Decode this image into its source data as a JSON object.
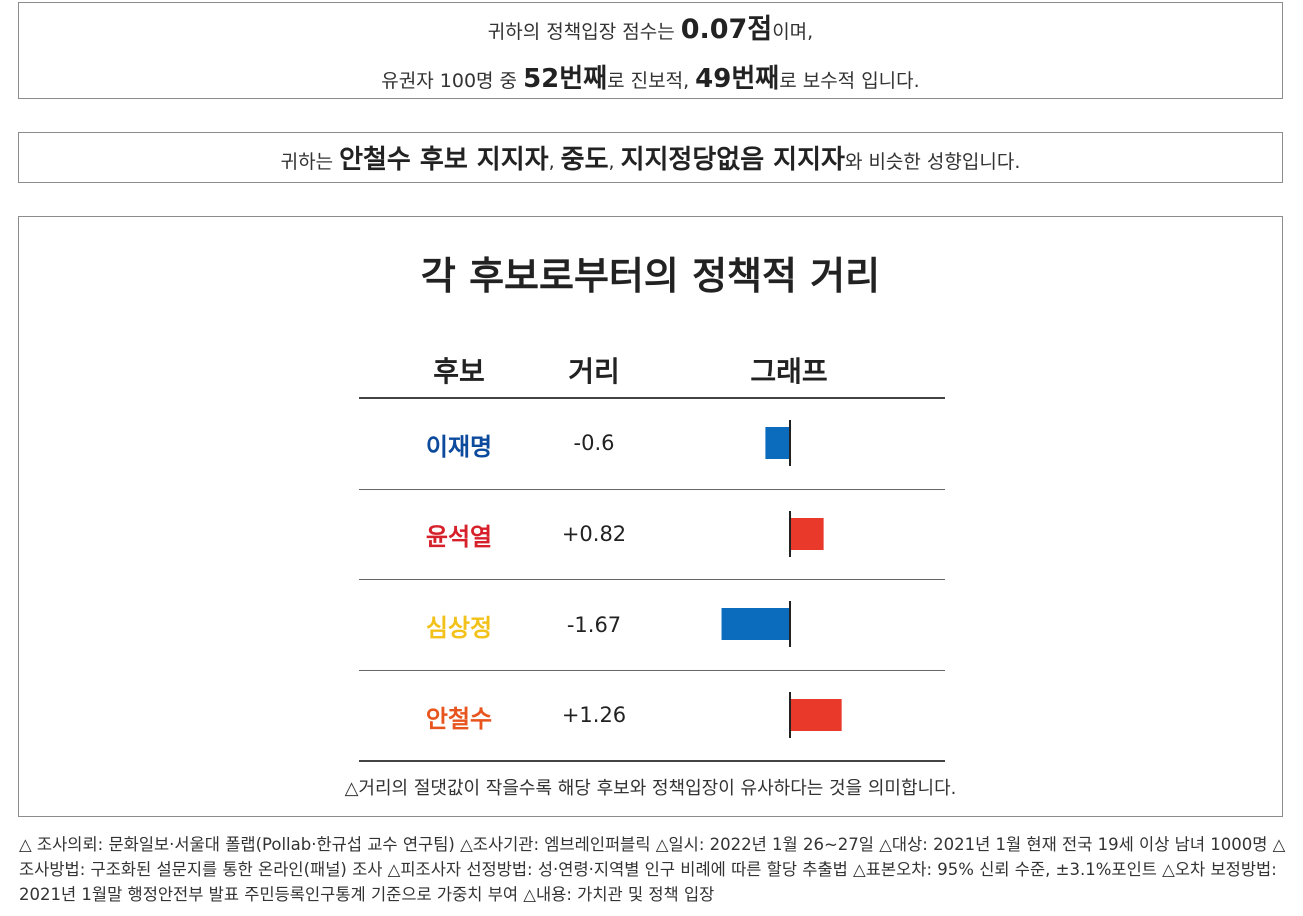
{
  "score": {
    "l1_a": "귀하의 정책입장 점수는 ",
    "score": "0.07점",
    "l1_b": "이며,",
    "l2_a": "유권자 100명 중 ",
    "progressive_rank": "52번째",
    "l2_b": "로 진보적, ",
    "conservative_rank": "49번째",
    "l2_c": "로 보수적 입니다."
  },
  "similar": {
    "prefix": "귀하는 ",
    "groups": "안철수 후보 지지자",
    "sep1": ", ",
    "group2": "중도",
    "sep2": ", ",
    "group3": "지지정당없음 지지자",
    "suffix": "와 비슷한 성향입니다."
  },
  "chart": {
    "title": "각 후보로부터의 정책적 거리",
    "headers": {
      "candidate": "후보",
      "distance": "거리",
      "graph": "그래프"
    },
    "note": "△거리의 절댓값이 작을수록 해당 후보와 정책입장이 유사하다는 것을 의미합니다."
  },
  "chart_data": {
    "type": "bar",
    "categories": [
      "이재명",
      "윤석열",
      "심상정",
      "안철수"
    ],
    "values": [
      -0.6,
      0.82,
      -1.67,
      1.26
    ],
    "labels": [
      "-0.6",
      "+0.82",
      "-1.67",
      "+1.26"
    ],
    "name_colors": [
      "#0b4a9c",
      "#d6212b",
      "#f2c21b",
      "#e8541e"
    ],
    "negative_color": "#0b6bbd",
    "positive_color": "#e8392b",
    "orientation": "horizontal"
  },
  "footer": "△ 조사의뢰: 문화일보·서울대 폴랩(Pollab·한규섭 교수 연구팀) △조사기관: 엠브레인퍼블릭 △일시: 2022년 1월 26~27일 △대상: 2021년 1월 현재 전국 19세 이상 남녀 1000명 △조사방법: 구조화된 설문지를 통한 온라인(패널) 조사 △피조사자 선정방법: 성·연령·지역별 인구 비례에 따른 할당 추출법 △표본오차: 95% 신뢰 수준, ±3.1%포인트 △오차 보정방법: 2021년 1월말 행정안전부 발표 주민등록인구통계 기준으로 가중치 부여 △내용: 가치관 및 정책 입장"
}
